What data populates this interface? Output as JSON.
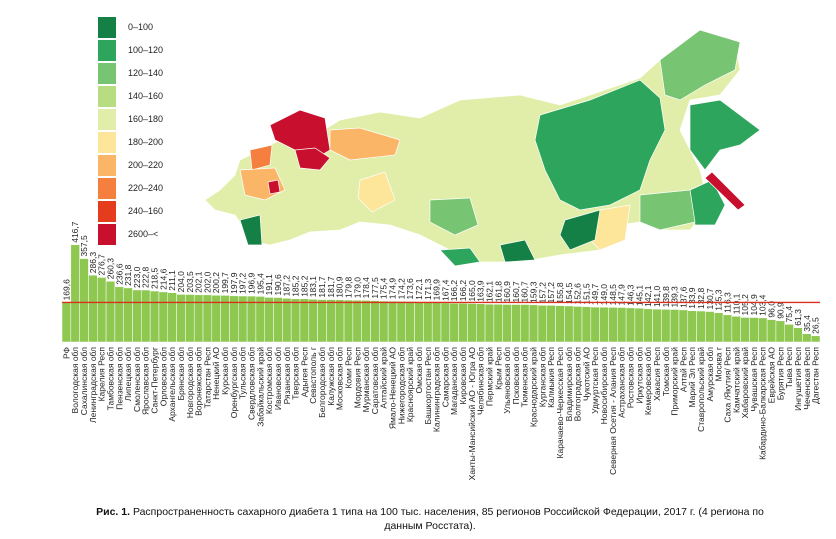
{
  "chart_data": {
    "type": "bar",
    "color": "#8fc851",
    "reference_color": "#d9301e",
    "ylim": [
      0,
      420
    ],
    "legend": [
      {
        "label": "0–100",
        "color": "#148046"
      },
      {
        "label": "100–120",
        "color": "#2ea55d"
      },
      {
        "label": "120–140",
        "color": "#77c472"
      },
      {
        "label": "140–160",
        "color": "#b7dc82"
      },
      {
        "label": "160–180",
        "color": "#e0eea9"
      },
      {
        "label": "180–200",
        "color": "#fde59a"
      },
      {
        "label": "200–220",
        "color": "#fbb566"
      },
      {
        "label": "220–240",
        "color": "#f47f3f"
      },
      {
        "label": "240–160",
        "color": "#e43c1d"
      },
      {
        "label": "2600–<",
        "color": "#c8102e"
      }
    ],
    "categories": [
      "РФ",
      "Вологодская обл",
      "Сахалинская обл",
      "Ленинградская обл",
      "Карелия Респ",
      "Тамбовская обл",
      "Пензенская обл",
      "Липецкая обл",
      "Смоленская обл",
      "Ярославская обл",
      "Санкт-Петербург",
      "Орловская обл",
      "Архангельская обл",
      "Брянская обл",
      "Новгородская обл",
      "Воронежская обл",
      "Татарстан Респ",
      "Ненецкий АО",
      "Курская обл",
      "Оренбургская обл",
      "Тульская обл",
      "Свердловская обл",
      "Забайкальский край",
      "Костромская обл",
      "Ивановская обл",
      "Рязанская обл",
      "Тверская обл",
      "Адыгея Респ",
      "Севастополь г",
      "Белгородская обл",
      "Калужская обл",
      "Московская обл",
      "Коми Респ",
      "Мордовия Респ",
      "Мурманская обл",
      "Саратовская обл",
      "Алтайский край",
      "Ямало-Ненецкий АО",
      "Нижегородская обл",
      "Красноярский край",
      "Омская обл",
      "Башкортостан Респ",
      "Калининградская обл",
      "Самарская обл",
      "Магаданская обл",
      "Кировская обл",
      "Ханты-Мансийский АО - Югра АО",
      "Челябинская обл",
      "Пермский край",
      "Крым Респ",
      "Ульяновская обл",
      "Псковская обл",
      "Тюменская обл",
      "Краснодарский край",
      "Курганская обл",
      "Калмыкия Респ",
      "Карачаево-Черкесская Респ",
      "Владимирская обл",
      "Волгоградская обл",
      "Чукотский АО",
      "Удмуртская Респ",
      "Новосибирская обл",
      "Северная Осетия - Алания Респ",
      "Астраханская обл",
      "Ростовская обл",
      "Иркутская обл",
      "Кемеровская обл",
      "Хакасия Респ",
      "Томская обл",
      "Приморский край",
      "Алтай Респ",
      "Марий Эл Респ",
      "Ставропольский край",
      "Амурская обл",
      "Москва г",
      "Саха /Якутия/ Респ",
      "Камчатский край",
      "Хабаровский край",
      "Чувашская Респ",
      "Кабардино-Балкарская Респ",
      "Еврейская АО",
      "Бурятия Респ",
      "Тыва Респ",
      "Ингушетия Респ",
      "Чеченская Респ",
      "Дагестан Респ"
    ],
    "values": [
      169.6,
      416.7,
      357.5,
      286.3,
      276.7,
      260.3,
      236.6,
      231.8,
      223.0,
      222.8,
      218.5,
      214.6,
      211.1,
      204.0,
      203.5,
      202.1,
      202.0,
      200.2,
      199.7,
      197.9,
      197.2,
      196.9,
      195.4,
      191.1,
      190.6,
      187.2,
      185.2,
      185.2,
      183.1,
      181.7,
      181.7,
      180.9,
      179.8,
      179.0,
      178.4,
      177.5,
      175.4,
      174.9,
      174.2,
      173.6,
      172.1,
      171.3,
      169.9,
      167.4,
      166.2,
      166.2,
      165.0,
      163.9,
      162.1,
      161.8,
      160.9,
      160.7,
      160.7,
      159.3,
      157.2,
      157.2,
      155.8,
      154.5,
      152.6,
      151.5,
      149.7,
      149.0,
      148.5,
      147.9,
      146.3,
      145.1,
      142.1,
      141.0,
      139.8,
      139.3,
      137.6,
      133.9,
      132.8,
      130.7,
      125.3,
      116.3,
      110.1,
      105.2,
      104.9,
      103.4,
      96.0,
      90.9,
      75.4,
      61.3,
      35.4,
      26.5
    ],
    "value_labels": [
      "169,6",
      "416,7",
      "357,5",
      "286,3",
      "276,7",
      "260,3",
      "236,6",
      "231,8",
      "223,0",
      "222,8",
      "218,5",
      "214,6",
      "211,1",
      "204,0",
      "203,5",
      "202,1",
      "202,0",
      "200,2",
      "199,7",
      "197,9",
      "197,2",
      "196,9",
      "195,4",
      "191,1",
      "190,6",
      "187,2",
      "185,2",
      "185,2",
      "183,1",
      "181,7",
      "181,7",
      "180,9",
      "179,8",
      "179,0",
      "178,4",
      "177,5",
      "175,4",
      "174,9",
      "174,2",
      "173,6",
      "172,1",
      "171,3",
      "169,9",
      "167,4",
      "166,2",
      "166,2",
      "165,0",
      "163,9",
      "162,1",
      "161,8",
      "160,9",
      "160,7",
      "160,7",
      "159,3",
      "157,2",
      "157,2",
      "155,8",
      "154,5",
      "152,6",
      "151,5",
      "149,7",
      "149,0",
      "148,5",
      "147,9",
      "146,3",
      "145,1",
      "142,1",
      "141,0",
      "139,8",
      "139,3",
      "137,6",
      "133,9",
      "132,8",
      "130,7",
      "125,3",
      "116,3",
      "110,1",
      "105,2",
      "104,9",
      "103,4",
      "96,0",
      "90,9",
      "75,4",
      "61,3",
      "35,4",
      "26,5"
    ],
    "caption": {
      "label": "Рис. 1.",
      "text": "Распространенность сахарного диабета 1 типа на 100 тыс. населения, 85 регионов Российской Федерации, 2017 г. (4 региона по данным Росстата)."
    }
  }
}
